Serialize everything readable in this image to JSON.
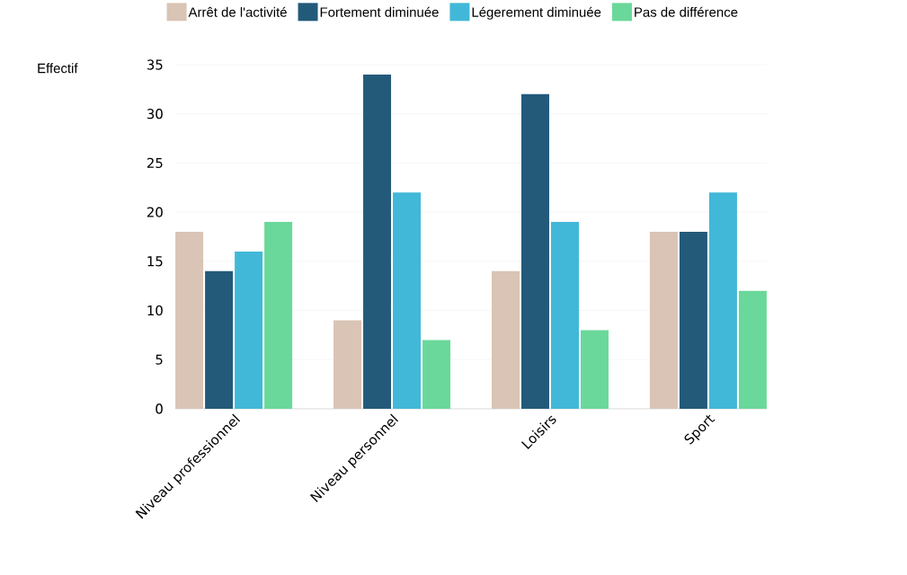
{
  "chart_data": {
    "type": "bar",
    "ylabel": "Effectif",
    "categories": [
      "Niveau professionnel",
      "Niveau personnel",
      "Loisirs",
      "Sport"
    ],
    "series": [
      {
        "name": "Arrêt de l'activité",
        "color": "#d9c4b5",
        "values": [
          18,
          9,
          14,
          18
        ]
      },
      {
        "name": "Fortement diminuée",
        "color": "#235a7a",
        "values": [
          14,
          34,
          32,
          18
        ]
      },
      {
        "name": "Légerement diminuée",
        "color": "#42b8d8",
        "values": [
          16,
          22,
          19,
          22
        ]
      },
      {
        "name": "Pas de différence",
        "color": "#6ad89a",
        "values": [
          19,
          7,
          8,
          12
        ]
      }
    ],
    "ylim": [
      0,
      35
    ],
    "yticks": [
      0,
      5,
      10,
      15,
      20,
      25,
      30,
      35
    ],
    "grid": "y",
    "legend": "top"
  }
}
